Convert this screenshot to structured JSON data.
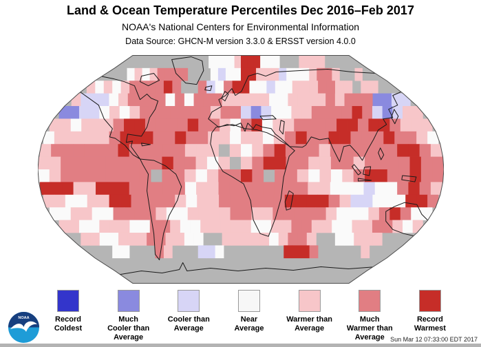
{
  "header": {
    "title": "Land & Ocean Temperature Percentiles Dec 2016–Feb 2017",
    "subtitle": "NOAA's National Centers for Environmental Information",
    "datasource": "Data Source: GHCN-M version 3.3.0 & ERSST version 4.0.0"
  },
  "footer": {
    "timestamp": "Sun Mar 12 07:33:00 EDT 2017"
  },
  "logo": {
    "name": "NOAA",
    "label": "NOAA",
    "navy": "#173f7f",
    "cyan": "#1e9cd7"
  },
  "legend": {
    "items": [
      {
        "id": "record-coldest",
        "label_lines": [
          "Record",
          "Coldest"
        ],
        "color": "#3335cb"
      },
      {
        "id": "much-cooler-than-average",
        "label_lines": [
          "Much",
          "Cooler than",
          "Average"
        ],
        "color": "#8a8adf"
      },
      {
        "id": "cooler-than-average",
        "label_lines": [
          "Cooler than",
          "Average"
        ],
        "color": "#d7d5f6"
      },
      {
        "id": "near-average",
        "label_lines": [
          "Near",
          "Average"
        ],
        "color": "#f7f7f7"
      },
      {
        "id": "warmer-than-average",
        "label_lines": [
          "Warmer than",
          "Average"
        ],
        "color": "#f7c6c9"
      },
      {
        "id": "much-warmer-than-average",
        "label_lines": [
          "Much",
          "Warmer than",
          "Average"
        ],
        "color": "#e17e83"
      },
      {
        "id": "record-warmest",
        "label_lines": [
          "Record",
          "Warmest"
        ],
        "color": "#c62d28"
      }
    ]
  },
  "chart_data": {
    "type": "heatmap",
    "title": "Land & Ocean Temperature Percentiles Dec 2016–Feb 2017",
    "subtitle": "NOAA's National Centers for Environmental Information",
    "projection": "Robinson-style world map",
    "lon_extent": [
      -180,
      180
    ],
    "lat_extent": [
      90,
      -90
    ],
    "cell_size_degrees": 10,
    "grid_note": "36 columns (180W to 180E) x 18 rows (90N to 90S); approximate dominant percentile class per 10-degree cell read from the map",
    "palette": {
      "G": {
        "label": "Missing / No Data",
        "color": "#b5b5b5"
      },
      "B": {
        "label": "Record Coldest",
        "color": "#3335cb"
      },
      "C": {
        "label": "Much Cooler than Average",
        "color": "#8a8adf"
      },
      "c": {
        "label": "Cooler than Average",
        "color": "#d7d5f6"
      },
      "N": {
        "label": "Near Average",
        "color": "#fafafa"
      },
      "w": {
        "label": "Warmer than Average",
        "color": "#f7c6c9"
      },
      "W": {
        "label": "Much Warmer than Average",
        "color": "#e17e83"
      },
      "R": {
        "label": "Record Warmest",
        "color": "#c62d28"
      }
    },
    "grid": [
      "GGGGGGGGGGGGGNNNNwRRRNNNGGGwwwwGGGGG",
      "GGGNwNwWWWWGGGNcNNRRwwwcNNNwWWwGGwGG",
      "wNwNwWWWWRWGGWcNWRRNNcNNwwwWWwwGwwGG",
      "wcccNwWWWWNWNWWWwwwwwNNwwwwWwWWWCCcc",
      "CCccNwNwWWWWWWWwWWcCcNNwwWWWWRWcCcww",
      "wwNwwwWRRWWWWRWWwNWRNwwWWWWRRWRRWwww",
      "NwwwwwWRRRWWRWWwwNwwNwWRWWRRWWWRWWwN",
      "wWWWWWWRWWWWWwwwGwNwWRWWWwWWWWWWRRWw",
      "wwWWWWWWWWWRWWwNwGwWRRWWwwWWwWWWWRWW",
      "NwWWWWWWWWGWWwNwWWRWGWWwNwNwWRRWWRWW",
      "RRRwwRRRWWWWWNwwWWWWWWWWwwNNNcNNWRWw",
      "wwNNwwRRWWWWwNwwWWWWWWRRRRWwccNNNRRW",
      "NNwwNNWWWWwNNwwwwWWwwWWWWWwNNNwWRWNN",
      "wwNNwwwNNWWwNNwwwwwNNwwWWwwNNwwWWwNw",
      "GwwNNwwwWWwwNNGGwwwwwNwWWwGGNNwwwGGG",
      "GGGNNGGGWwGGGccNGGGGGGGRRRWGGGGGwGGG",
      "GGGGGGGGGGGGGGGGGGGGGGGGGGGGGGGGGGGG",
      "GGGGGGGGGGGGGGGGGGGGGGGGGGGGGGGGGGGG"
    ],
    "legend_entries": [
      "Record Coldest",
      "Much Cooler than Average",
      "Cooler than Average",
      "Near Average",
      "Warmer than Average",
      "Much Warmer than Average",
      "Record Warmest"
    ],
    "legend_position": "bottom"
  }
}
